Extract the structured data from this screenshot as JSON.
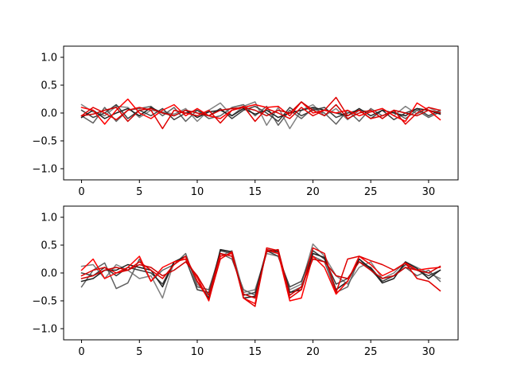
{
  "chart_data": [
    {
      "type": "line",
      "title": "",
      "xlabel": "",
      "ylabel": "",
      "xlim": [
        -1.55,
        32.55
      ],
      "ylim": [
        -1.2,
        1.2
      ],
      "xticks": [
        0,
        5,
        10,
        15,
        20,
        25,
        30
      ],
      "xtick_labels": [
        "0",
        "5",
        "10",
        "15",
        "20",
        "25",
        "30"
      ],
      "yticks": [
        -1.0,
        -0.5,
        0.0,
        0.5,
        1.0
      ],
      "ytick_labels": [
        "−1.0",
        "−0.5",
        "0.0",
        "0.5",
        "1.0"
      ],
      "grid": false,
      "legend": "none",
      "x": [
        0,
        1,
        2,
        3,
        4,
        5,
        6,
        7,
        8,
        9,
        10,
        11,
        12,
        13,
        14,
        15,
        16,
        17,
        18,
        19,
        20,
        21,
        22,
        23,
        24,
        25,
        26,
        27,
        28,
        29,
        30,
        31
      ],
      "series": [
        {
          "color": "#808080",
          "values": [
            0.15,
            0.02,
            -0.05,
            0.12,
            0.1,
            -0.08,
            0.05,
            0.02,
            -0.02,
            0.08,
            -0.15,
            0.05,
            0.18,
            -0.05,
            0.12,
            0.2,
            -0.22,
            0.1,
            -0.28,
            0.05,
            0.15,
            -0.05,
            0.08,
            -0.12,
            0.05,
            0.02,
            0.08,
            -0.05,
            0.12,
            -0.02,
            0.1,
            0.0
          ]
        },
        {
          "color": "#606060",
          "values": [
            -0.05,
            -0.18,
            0.1,
            -0.15,
            0.05,
            0.08,
            0.12,
            -0.05,
            0.1,
            -0.15,
            0.05,
            -0.1,
            -0.05,
            0.1,
            0.15,
            -0.05,
            0.12,
            -0.22,
            0.05,
            -0.1,
            0.08,
            0.0,
            -0.2,
            0.05,
            -0.15,
            0.08,
            -0.05,
            0.02,
            -0.1,
            0.05,
            -0.08,
            0.02
          ]
        },
        {
          "color": "#404040",
          "values": [
            0.05,
            -0.08,
            0.0,
            0.15,
            -0.1,
            0.05,
            -0.05,
            0.08,
            -0.12,
            0.0,
            0.05,
            -0.05,
            0.08,
            -0.1,
            0.05,
            0.12,
            0.0,
            -0.15,
            0.1,
            -0.05,
            0.05,
            0.1,
            -0.08,
            0.0,
            0.05,
            -0.1,
            0.05,
            -0.12,
            0.0,
            0.08,
            -0.05,
            0.05
          ]
        },
        {
          "color": "#202020",
          "values": [
            -0.08,
            0.05,
            -0.1,
            0.0,
            0.08,
            -0.05,
            0.1,
            0.0,
            -0.05,
            0.05,
            -0.08,
            0.02,
            0.05,
            -0.05,
            0.08,
            -0.02,
            0.05,
            -0.08,
            0.0,
            0.05,
            0.1,
            0.05,
            0.0,
            -0.05,
            0.08,
            -0.05,
            0.05,
            0.0,
            -0.05,
            0.08,
            0.05,
            -0.02
          ]
        },
        {
          "color": "#ff0000",
          "values": [
            0.1,
            0.05,
            -0.2,
            0.05,
            0.25,
            0.0,
            -0.1,
            0.05,
            0.15,
            -0.05,
            0.08,
            -0.05,
            -0.1,
            0.05,
            0.1,
            0.15,
            0.1,
            0.12,
            -0.05,
            0.2,
            0.0,
            0.05,
            0.0,
            0.05,
            -0.05,
            0.02,
            0.08,
            -0.05,
            -0.15,
            0.18,
            0.05,
            -0.12
          ]
        },
        {
          "color": "#e00000",
          "values": [
            -0.05,
            0.1,
            0.0,
            -0.12,
            0.05,
            0.1,
            0.05,
            -0.28,
            0.05,
            0.0,
            -0.05,
            0.05,
            -0.18,
            0.05,
            0.12,
            -0.15,
            0.08,
            0.0,
            -0.1,
            0.1,
            -0.05,
            0.05,
            0.28,
            -0.05,
            0.05,
            -0.1,
            -0.05,
            0.05,
            -0.2,
            0.0,
            0.1,
            0.05
          ]
        },
        {
          "color": "#cc0000",
          "values": [
            -0.05,
            -0.02,
            0.05,
            0.1,
            -0.15,
            0.05,
            0.08,
            0.0,
            -0.05,
            0.05,
            0.0,
            -0.05,
            0.05,
            0.08,
            0.1,
            0.05,
            -0.05,
            0.05,
            0.0,
            0.2,
            0.05,
            -0.05,
            0.15,
            -0.1,
            0.0,
            0.05,
            -0.1,
            0.05,
            0.0,
            -0.05,
            0.05,
            0.0
          ]
        }
      ]
    },
    {
      "type": "line",
      "title": "",
      "xlabel": "",
      "ylabel": "",
      "xlim": [
        -1.55,
        32.55
      ],
      "ylim": [
        -1.2,
        1.2
      ],
      "xticks": [
        0,
        5,
        10,
        15,
        20,
        25,
        30
      ],
      "xtick_labels": [
        "0",
        "5",
        "10",
        "15",
        "20",
        "25",
        "30"
      ],
      "yticks": [
        -1.0,
        -0.5,
        0.0,
        0.5,
        1.0
      ],
      "ytick_labels": [
        "−1.0",
        "−0.5",
        "0.0",
        "0.5",
        "1.0"
      ],
      "grid": false,
      "legend": "none",
      "x": [
        0,
        1,
        2,
        3,
        4,
        5,
        6,
        7,
        8,
        9,
        10,
        11,
        12,
        13,
        14,
        15,
        16,
        17,
        18,
        19,
        20,
        21,
        22,
        23,
        24,
        25,
        26,
        27,
        28,
        29,
        30,
        31
      ],
      "series": [
        {
          "color": "#808080",
          "values": [
            0.12,
            0.15,
            -0.1,
            0.15,
            0.05,
            -0.1,
            -0.05,
            -0.45,
            0.2,
            0.3,
            -0.2,
            -0.4,
            0.3,
            0.4,
            -0.35,
            -0.3,
            0.35,
            0.3,
            -0.3,
            -0.2,
            0.52,
            0.3,
            -0.05,
            -0.2,
            0.1,
            0.2,
            -0.1,
            0.0,
            0.2,
            0.1,
            0.0,
            -0.1
          ]
        },
        {
          "color": "#606060",
          "values": [
            -0.25,
            0.05,
            0.18,
            -0.28,
            -0.18,
            0.25,
            -0.15,
            0.05,
            0.15,
            0.35,
            -0.25,
            -0.3,
            0.35,
            0.25,
            -0.3,
            -0.4,
            0.4,
            0.35,
            -0.35,
            -0.25,
            0.3,
            0.2,
            -0.35,
            -0.25,
            0.25,
            0.05,
            -0.15,
            -0.05,
            0.1,
            -0.05,
            0.05,
            -0.15
          ]
        },
        {
          "color": "#404040",
          "values": [
            0.0,
            -0.05,
            0.1,
            -0.05,
            0.1,
            0.05,
            0.0,
            -0.2,
            0.2,
            0.25,
            -0.3,
            -0.35,
            0.4,
            0.35,
            -0.4,
            -0.35,
            0.4,
            0.3,
            -0.25,
            -0.15,
            0.4,
            0.25,
            -0.2,
            -0.1,
            0.2,
            0.1,
            -0.15,
            -0.05,
            0.15,
            0.05,
            -0.05,
            0.05
          ]
        },
        {
          "color": "#202020",
          "values": [
            -0.15,
            -0.1,
            0.05,
            0.05,
            0.15,
            0.1,
            0.05,
            -0.25,
            0.2,
            0.3,
            -0.15,
            -0.45,
            0.42,
            0.38,
            -0.45,
            -0.42,
            0.42,
            0.38,
            -0.35,
            -0.3,
            0.35,
            0.28,
            -0.3,
            -0.15,
            0.25,
            0.08,
            -0.18,
            -0.1,
            0.2,
            0.08,
            -0.1,
            0.05
          ]
        },
        {
          "color": "#ff0000",
          "values": [
            0.05,
            0.25,
            -0.1,
            0.0,
            0.1,
            0.3,
            -0.15,
            0.1,
            0.2,
            0.25,
            -0.08,
            -0.5,
            0.3,
            0.35,
            -0.45,
            -0.55,
            0.42,
            0.35,
            -0.5,
            -0.45,
            0.3,
            0.1,
            -0.38,
            -0.15,
            0.3,
            0.15,
            -0.05,
            0.05,
            0.18,
            0.05,
            0.08,
            0.1
          ]
        },
        {
          "color": "#e00000",
          "values": [
            -0.05,
            0.05,
            0.1,
            0.0,
            0.05,
            0.2,
            0.05,
            -0.1,
            0.15,
            0.3,
            -0.15,
            -0.48,
            0.25,
            0.38,
            -0.45,
            -0.6,
            0.45,
            0.4,
            -0.45,
            -0.3,
            0.45,
            0.35,
            -0.35,
            0.25,
            0.3,
            0.22,
            0.15,
            0.05,
            0.18,
            -0.1,
            -0.15,
            -0.32
          ]
        },
        {
          "color": "#cc0000",
          "values": [
            -0.1,
            -0.05,
            0.05,
            0.1,
            0.05,
            0.15,
            0.1,
            -0.05,
            0.05,
            0.2,
            -0.05,
            -0.4,
            0.35,
            0.3,
            -0.38,
            -0.45,
            0.38,
            0.42,
            -0.4,
            -0.25,
            0.25,
            0.2,
            -0.05,
            -0.1,
            0.2,
            0.05,
            -0.1,
            -0.05,
            0.1,
            0.05,
            0.0,
            0.12
          ]
        }
      ]
    }
  ]
}
